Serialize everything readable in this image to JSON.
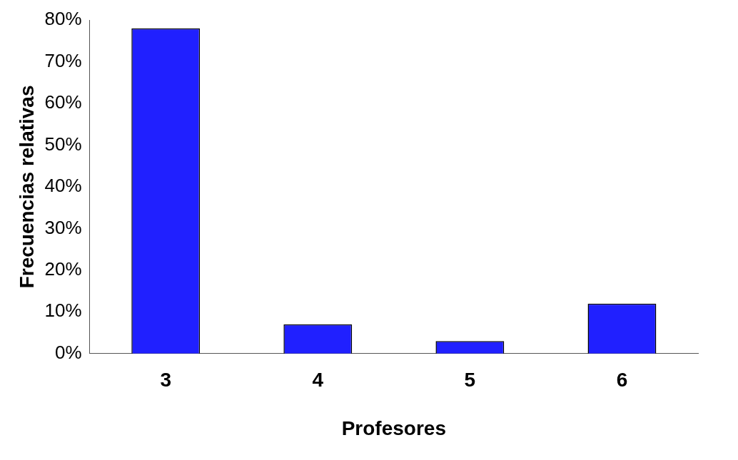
{
  "chart_data": {
    "type": "bar",
    "xlabel": "Profesores",
    "ylabel": "Frecuencias relativas",
    "categories": [
      "3",
      "4",
      "5",
      "6"
    ],
    "values": [
      78,
      7,
      3,
      12
    ],
    "color": "#2020ff",
    "ylim": [
      0,
      80
    ],
    "yticks": [
      {
        "value": 0,
        "label": "0%"
      },
      {
        "value": 10,
        "label": "10%"
      },
      {
        "value": 20,
        "label": "20%"
      },
      {
        "value": 30,
        "label": "30%"
      },
      {
        "value": 40,
        "label": "40%"
      },
      {
        "value": 50,
        "label": "50%"
      },
      {
        "value": 60,
        "label": "60%"
      },
      {
        "value": 70,
        "label": "70%"
      },
      {
        "value": 80,
        "label": "80%"
      }
    ],
    "grid": false,
    "legend": false
  }
}
